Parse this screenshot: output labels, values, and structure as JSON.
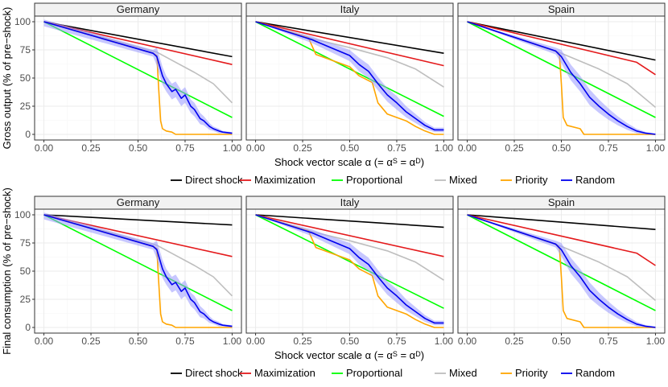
{
  "chart_data": [
    {
      "type": "line",
      "ylabel": "Gross output (% of pre−shock)",
      "xlabel_prefix": "Shock vector scale α (= α",
      "xlabel_sup1": "S",
      "xlabel_mid": " = α",
      "xlabel_sup2": "D",
      "xlabel_suffix": ")",
      "xlim": [
        0,
        1
      ],
      "ylim": [
        -5,
        105
      ],
      "x_ticks": [
        0,
        0.25,
        0.5,
        0.75,
        1
      ],
      "x_tick_labels": [
        "0.00",
        "0.25",
        "0.50",
        "0.75",
        "1.00"
      ],
      "y_ticks": [
        0,
        25,
        50,
        75,
        100
      ],
      "y_tick_labels": [
        "0",
        "25",
        "50",
        "75",
        "100"
      ],
      "panels": [
        {
          "title": "Germany",
          "series": [
            {
              "name": "Direct shock",
              "x": [
                0,
                1
              ],
              "values": [
                100,
                69
              ]
            },
            {
              "name": "Maximization",
              "x": [
                0,
                1
              ],
              "values": [
                100,
                62
              ]
            },
            {
              "name": "Proportional",
              "x": [
                0,
                1
              ],
              "values": [
                100,
                15
              ]
            },
            {
              "name": "Mixed",
              "x": [
                0,
                0.6,
                0.7,
                0.8,
                0.9,
                1
              ],
              "values": [
                100,
                73,
                64,
                55,
                45,
                28
              ]
            },
            {
              "name": "Priority",
              "x": [
                0,
                0.58,
                0.6,
                0.61,
                0.62,
                0.63,
                0.65,
                0.68,
                0.7,
                1
              ],
              "values": [
                100,
                72,
                70,
                40,
                12,
                5,
                3,
                2,
                0,
                0
              ]
            },
            {
              "name": "Random",
              "x": [
                0,
                0.58,
                0.6,
                0.63,
                0.65,
                0.68,
                0.7,
                0.73,
                0.75,
                0.78,
                0.8,
                0.83,
                0.85,
                0.88,
                0.9,
                0.93,
                0.95,
                1
              ],
              "values": [
                100,
                72,
                69,
                52,
                45,
                38,
                40,
                32,
                35,
                25,
                22,
                14,
                12,
                7,
                5,
                3,
                2,
                1
              ],
              "band": [
                4,
                3,
                8,
                8,
                7,
                7,
                7,
                7,
                7,
                6,
                6,
                5,
                4,
                3,
                2,
                2,
                1,
                1
              ]
            }
          ]
        },
        {
          "title": "Italy",
          "series": [
            {
              "name": "Direct shock",
              "x": [
                0,
                1
              ],
              "values": [
                100,
                72
              ]
            },
            {
              "name": "Maximization",
              "x": [
                0,
                1
              ],
              "values": [
                100,
                61
              ]
            },
            {
              "name": "Proportional",
              "x": [
                0,
                1
              ],
              "values": [
                100,
                16
              ]
            },
            {
              "name": "Mixed",
              "x": [
                0,
                0.3,
                0.5,
                0.7,
                0.85,
                1
              ],
              "values": [
                100,
                85,
                77,
                68,
                58,
                42
              ]
            },
            {
              "name": "Priority",
              "x": [
                0,
                0.28,
                0.32,
                0.5,
                0.55,
                0.62,
                0.65,
                0.7,
                0.8,
                0.85,
                0.9,
                0.95,
                1
              ],
              "values": [
                100,
                86,
                71,
                60,
                52,
                46,
                28,
                18,
                12,
                7,
                3,
                0,
                0
              ]
            },
            {
              "name": "Random",
              "x": [
                0,
                0.3,
                0.4,
                0.5,
                0.55,
                0.6,
                0.65,
                0.7,
                0.75,
                0.8,
                0.85,
                0.9,
                0.95,
                1
              ],
              "values": [
                100,
                84,
                77,
                70,
                62,
                56,
                45,
                35,
                28,
                20,
                14,
                8,
                4,
                4
              ],
              "band": [
                0,
                3,
                4,
                5,
                6,
                6,
                6,
                6,
                6,
                5,
                4,
                3,
                2,
                2
              ]
            }
          ]
        },
        {
          "title": "Spain",
          "series": [
            {
              "name": "Direct shock",
              "x": [
                0,
                1
              ],
              "values": [
                100,
                66
              ]
            },
            {
              "name": "Maximization",
              "x": [
                0,
                0.9,
                1
              ],
              "values": [
                100,
                64,
                53
              ]
            },
            {
              "name": "Proportional",
              "x": [
                0,
                1
              ],
              "values": [
                100,
                15
              ]
            },
            {
              "name": "Mixed",
              "x": [
                0,
                0.5,
                0.7,
                0.85,
                1
              ],
              "values": [
                100,
                72,
                58,
                45,
                24
              ]
            },
            {
              "name": "Priority",
              "x": [
                0,
                0.47,
                0.49,
                0.5,
                0.51,
                0.53,
                0.6,
                0.62,
                1
              ],
              "values": [
                100,
                74,
                70,
                45,
                15,
                8,
                5,
                0,
                0
              ]
            },
            {
              "name": "Random",
              "x": [
                0,
                0.47,
                0.5,
                0.55,
                0.6,
                0.65,
                0.7,
                0.75,
                0.8,
                0.85,
                0.9,
                0.95,
                1
              ],
              "values": [
                100,
                74,
                69,
                55,
                45,
                33,
                25,
                18,
                12,
                7,
                3,
                1,
                0
              ],
              "band": [
                0,
                3,
                6,
                7,
                7,
                7,
                6,
                5,
                4,
                3,
                2,
                1,
                1
              ]
            }
          ]
        }
      ]
    },
    {
      "type": "line",
      "ylabel": "Final consumption (% of pre−shock)",
      "xlabel_prefix": "Shock vector scale α (= α",
      "xlabel_sup1": "S",
      "xlabel_mid": " = α",
      "xlabel_sup2": "D",
      "xlabel_suffix": ")",
      "xlim": [
        0,
        1
      ],
      "ylim": [
        -5,
        105
      ],
      "x_ticks": [
        0,
        0.25,
        0.5,
        0.75,
        1
      ],
      "x_tick_labels": [
        "0.00",
        "0.25",
        "0.50",
        "0.75",
        "1.00"
      ],
      "y_ticks": [
        0,
        25,
        50,
        75,
        100
      ],
      "y_tick_labels": [
        "0",
        "25",
        "50",
        "75",
        "100"
      ],
      "panels": [
        {
          "title": "Germany",
          "series": [
            {
              "name": "Direct shock",
              "x": [
                0,
                1
              ],
              "values": [
                100,
                91
              ]
            },
            {
              "name": "Maximization",
              "x": [
                0,
                1
              ],
              "values": [
                100,
                63
              ]
            },
            {
              "name": "Proportional",
              "x": [
                0,
                1
              ],
              "values": [
                100,
                15
              ]
            },
            {
              "name": "Mixed",
              "x": [
                0,
                0.6,
                0.7,
                0.8,
                0.9,
                1
              ],
              "values": [
                100,
                73,
                64,
                55,
                45,
                28
              ]
            },
            {
              "name": "Priority",
              "x": [
                0,
                0.58,
                0.6,
                0.61,
                0.62,
                0.63,
                0.65,
                0.68,
                0.7,
                1
              ],
              "values": [
                100,
                72,
                70,
                40,
                12,
                5,
                3,
                2,
                0,
                0
              ]
            },
            {
              "name": "Random",
              "x": [
                0,
                0.58,
                0.6,
                0.63,
                0.65,
                0.68,
                0.7,
                0.73,
                0.75,
                0.78,
                0.8,
                0.83,
                0.85,
                0.88,
                0.9,
                0.93,
                0.95,
                1
              ],
              "values": [
                100,
                72,
                69,
                52,
                45,
                38,
                40,
                32,
                35,
                25,
                22,
                14,
                12,
                7,
                5,
                3,
                2,
                1
              ],
              "band": [
                4,
                3,
                8,
                8,
                7,
                7,
                7,
                7,
                7,
                6,
                6,
                5,
                4,
                3,
                2,
                2,
                1,
                1
              ]
            }
          ]
        },
        {
          "title": "Italy",
          "series": [
            {
              "name": "Direct shock",
              "x": [
                0,
                1
              ],
              "values": [
                100,
                89
              ]
            },
            {
              "name": "Maximization",
              "x": [
                0,
                1
              ],
              "values": [
                100,
                63
              ]
            },
            {
              "name": "Proportional",
              "x": [
                0,
                1
              ],
              "values": [
                100,
                17
              ]
            },
            {
              "name": "Mixed",
              "x": [
                0,
                0.3,
                0.5,
                0.7,
                0.85,
                1
              ],
              "values": [
                100,
                85,
                77,
                68,
                58,
                42
              ]
            },
            {
              "name": "Priority",
              "x": [
                0,
                0.28,
                0.32,
                0.5,
                0.55,
                0.62,
                0.65,
                0.7,
                0.8,
                0.85,
                0.9,
                0.95,
                1
              ],
              "values": [
                100,
                86,
                71,
                60,
                52,
                46,
                28,
                18,
                12,
                7,
                3,
                0,
                0
              ]
            },
            {
              "name": "Random",
              "x": [
                0,
                0.3,
                0.4,
                0.5,
                0.55,
                0.6,
                0.65,
                0.7,
                0.75,
                0.8,
                0.85,
                0.9,
                0.95,
                1
              ],
              "values": [
                100,
                84,
                77,
                70,
                62,
                56,
                45,
                35,
                28,
                20,
                14,
                8,
                4,
                4
              ],
              "band": [
                0,
                3,
                4,
                5,
                6,
                6,
                6,
                6,
                6,
                5,
                4,
                3,
                2,
                2
              ]
            }
          ]
        },
        {
          "title": "Spain",
          "series": [
            {
              "name": "Direct shock",
              "x": [
                0,
                1
              ],
              "values": [
                100,
                87
              ]
            },
            {
              "name": "Maximization",
              "x": [
                0,
                0.9,
                1
              ],
              "values": [
                100,
                66,
                55
              ]
            },
            {
              "name": "Proportional",
              "x": [
                0,
                1
              ],
              "values": [
                100,
                15
              ]
            },
            {
              "name": "Mixed",
              "x": [
                0,
                0.5,
                0.7,
                0.85,
                1
              ],
              "values": [
                100,
                72,
                58,
                45,
                24
              ]
            },
            {
              "name": "Priority",
              "x": [
                0,
                0.47,
                0.49,
                0.5,
                0.51,
                0.53,
                0.6,
                0.62,
                1
              ],
              "values": [
                100,
                74,
                70,
                45,
                15,
                8,
                5,
                0,
                0
              ]
            },
            {
              "name": "Random",
              "x": [
                0,
                0.47,
                0.5,
                0.55,
                0.6,
                0.65,
                0.7,
                0.75,
                0.8,
                0.85,
                0.9,
                0.95,
                1
              ],
              "values": [
                100,
                74,
                69,
                55,
                45,
                33,
                25,
                18,
                12,
                7,
                3,
                1,
                0
              ],
              "band": [
                0,
                3,
                6,
                7,
                7,
                7,
                6,
                5,
                4,
                3,
                2,
                1,
                1
              ]
            }
          ]
        }
      ]
    }
  ],
  "legend": {
    "placement": "bottom",
    "items": [
      {
        "name": "Direct shock",
        "color": "#000000"
      },
      {
        "name": "Maximization",
        "color": "#e41a1c"
      },
      {
        "name": "Proportional",
        "color": "#00ff00"
      },
      {
        "name": "Mixed",
        "color": "#bebebe"
      },
      {
        "name": "Priority",
        "color": "#ffa500"
      },
      {
        "name": "Random",
        "color": "#0000ee"
      }
    ]
  },
  "colors": {
    "Direct shock": "#000000",
    "Maximization": "#e41a1c",
    "Proportional": "#00ff00",
    "Mixed": "#bebebe",
    "Priority": "#ffa500",
    "Random": "#0000ee",
    "Random_band": "#9999ff",
    "strip_fill": "#f2f2f2",
    "grid_major": "#ebebeb",
    "grid_minor": "#f5f5f5",
    "panel_border": "#333333"
  }
}
